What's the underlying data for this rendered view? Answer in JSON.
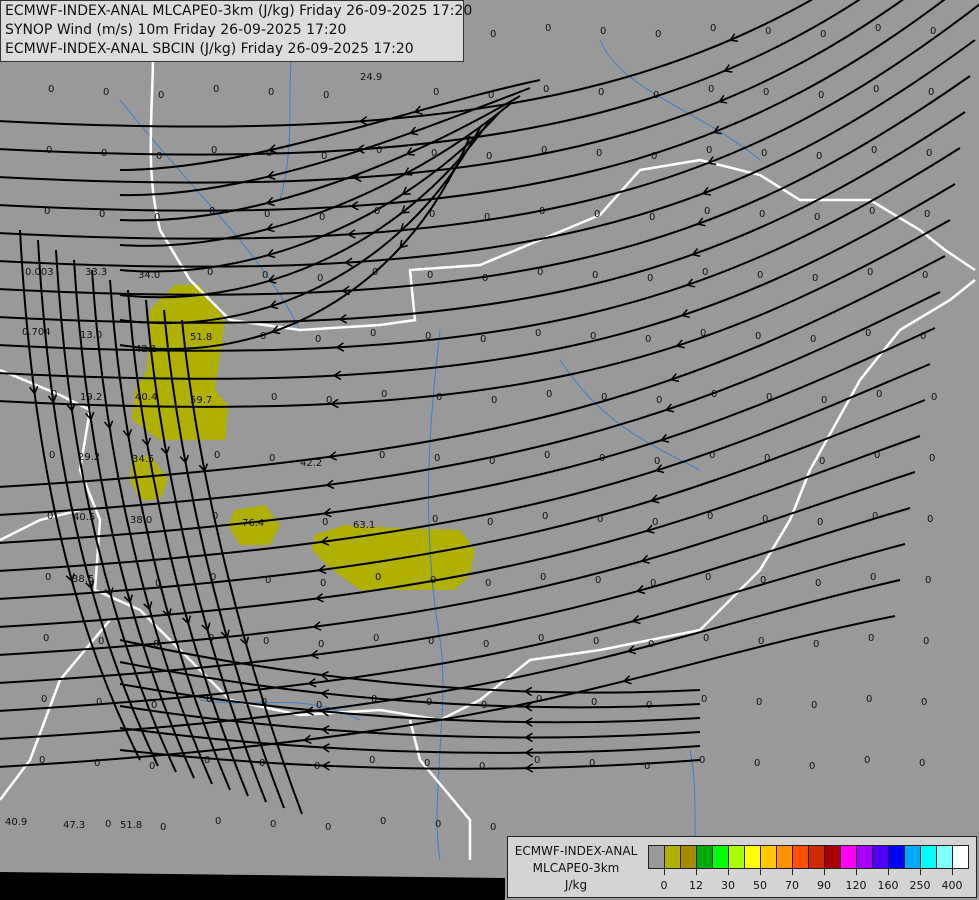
{
  "header": {
    "lines": [
      "ECMWF-INDEX-ANAL MLCAPE0-3km (J/kg) Friday 26-09-2025 17:20",
      "SYNOP Wind (m/s) 10m Friday 26-09-2025 17:20",
      "ECMWF-INDEX-ANAL SBCIN (J/kg) Friday 26-09-2025 17:20"
    ]
  },
  "legend": {
    "source": "ECMWF-INDEX-ANAL",
    "parameter": "MLCAPE0-3km",
    "unit": "J/kg",
    "colors": [
      "#999999",
      "#b0b000",
      "#a88a00",
      "#00aa00",
      "#00ff00",
      "#a8ff00",
      "#ffff00",
      "#ffc800",
      "#ff9000",
      "#ff5000",
      "#d02800",
      "#a80000",
      "#ff00ff",
      "#a800ff",
      "#5000ff",
      "#0000ff",
      "#00a8ff",
      "#00ffff",
      "#80ffff",
      "#ffffff"
    ],
    "tick_labels": [
      "0",
      "12",
      "30",
      "50",
      "70",
      "90",
      "120",
      "160",
      "250",
      "400"
    ]
  },
  "map": {
    "cape_color": "#b0b000",
    "border_color": "#ffffff",
    "river_color": "#3a7fd0",
    "streamline_color": "#000000",
    "station_values": [
      "24.9",
      "0.003",
      "33.3",
      "34.0",
      "0.704",
      "13.0",
      "42.1",
      "51.8",
      "19.2",
      "40.4",
      "59.7",
      "29.2",
      "34.5",
      "42.2",
      "40.5",
      "38.0",
      "76.4",
      "63.1",
      "38.5",
      "40.9",
      "47.3",
      "51.8"
    ]
  }
}
